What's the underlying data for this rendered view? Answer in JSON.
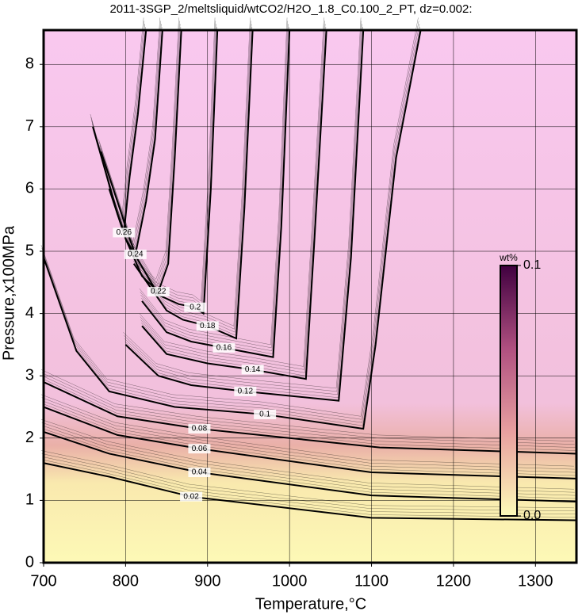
{
  "chart_data": {
    "type": "contour",
    "title": "2011-3SGP_2/meltsliquid/wtCO2/H2O_1.8_C0.100_2_PT, dz=0.002:",
    "x_label": "Temperature,°C",
    "y_label": "Pressure,x100MPa",
    "xlim": [
      700,
      1350
    ],
    "ylim": [
      0,
      8.55
    ],
    "xticks": [
      700,
      800,
      900,
      1000,
      1100,
      1200,
      1300
    ],
    "yticks": [
      0,
      1,
      2,
      3,
      4,
      5,
      6,
      7,
      8
    ],
    "grid": true,
    "color": "#000000",
    "colorbar": {
      "label": "wt%",
      "min": {
        "value": 0,
        "label": "0.0"
      },
      "max": 0.1,
      "colors": [
        "#fdfbb8",
        "#e8a0a0",
        "#b05080",
        "#400040"
      ]
    },
    "contours": [
      {
        "level": 0.02,
        "x": [
          700,
          780,
          880,
          1100,
          1350
        ],
        "y": [
          1.6,
          1.38,
          1.06,
          0.72,
          0.68
        ]
      },
      {
        "level": 0.04,
        "x": [
          700,
          780,
          890,
          1100,
          1350
        ],
        "y": [
          2.1,
          1.75,
          1.45,
          1.08,
          0.98
        ]
      },
      {
        "level": 0.06,
        "x": [
          700,
          790,
          890,
          1100,
          1350
        ],
        "y": [
          2.5,
          2.05,
          1.83,
          1.45,
          1.35
        ]
      },
      {
        "level": 0.08,
        "x": [
          700,
          790,
          890,
          1110,
          1350
        ],
        "y": [
          2.9,
          2.35,
          2.15,
          1.85,
          1.75
        ]
      },
      {
        "level": 0.1,
        "x": [
          700,
          740,
          780,
          860,
          970,
          1090,
          1105,
          1130,
          1160
        ],
        "y": [
          4.9,
          3.4,
          2.75,
          2.5,
          2.38,
          2.15,
          3.5,
          6.5,
          8.55
        ]
      },
      {
        "level": 0.12,
        "x": [
          800,
          840,
          880,
          946,
          1060,
          1075,
          1090
        ],
        "y": [
          3.5,
          3.0,
          2.85,
          2.75,
          2.6,
          4.9,
          8.55
        ]
      },
      {
        "level": 0.14,
        "x": [
          820,
          850,
          900,
          955,
          1020,
          1030,
          1045
        ],
        "y": [
          3.8,
          3.35,
          3.2,
          3.1,
          2.95,
          5.1,
          8.55
        ]
      },
      {
        "level": 0.16,
        "x": [
          820,
          850,
          880,
          920,
          980,
          990,
          1000
        ],
        "y": [
          4.2,
          3.7,
          3.55,
          3.45,
          3.3,
          5.4,
          8.55
        ]
      },
      {
        "level": 0.18,
        "x": [
          810,
          850,
          870,
          900,
          935,
          945,
          955
        ],
        "y": [
          4.8,
          4.05,
          3.9,
          3.8,
          3.6,
          5.7,
          8.55
        ]
      },
      {
        "level": 0.2,
        "x": [
          800,
          840,
          865,
          885,
          895,
          904,
          912
        ],
        "y": [
          5.2,
          4.3,
          4.15,
          4.1,
          4.0,
          6.0,
          8.55
        ]
      },
      {
        "level": 0.22,
        "x": [
          780,
          800,
          820,
          840,
          852,
          860,
          868
        ],
        "y": [
          6.0,
          5.2,
          4.6,
          4.35,
          4.8,
          6.5,
          8.55
        ]
      },
      {
        "level": 0.24,
        "x": [
          770,
          790,
          805,
          812,
          825,
          836,
          845
        ],
        "y": [
          6.6,
          5.8,
          5.2,
          4.95,
          5.8,
          6.8,
          8.55
        ]
      },
      {
        "level": 0.26,
        "x": [
          760,
          775,
          790,
          798,
          805,
          815,
          825
        ],
        "y": [
          7.0,
          6.3,
          5.6,
          5.3,
          6.2,
          7.2,
          8.55
        ]
      }
    ]
  }
}
